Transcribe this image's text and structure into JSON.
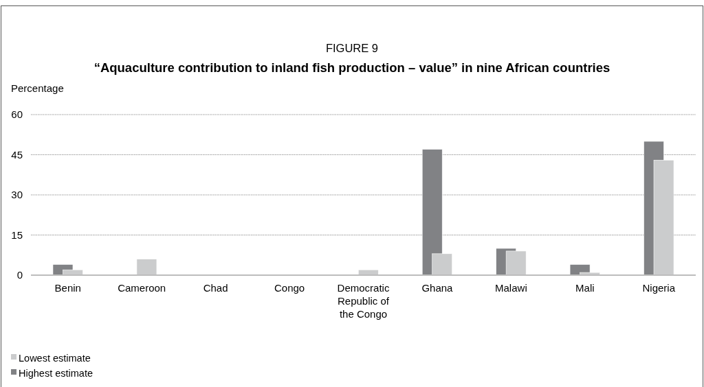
{
  "chart_data": {
    "type": "bar",
    "title": "FIGURE 9",
    "subtitle": "“Aquaculture contribution to inland fish production – value” in nine African countries",
    "ylabel": "Percentage",
    "categories": [
      "Benin",
      "Cameroon",
      "Chad",
      "Congo",
      "Democratic Republic of the Congo",
      "Ghana",
      "Malawi",
      "Mali",
      "Nigeria"
    ],
    "series": [
      {
        "name": "Lowest estimate",
        "color": "#cbcccd",
        "values": [
          2,
          6,
          0,
          0,
          2,
          8,
          9,
          1,
          43
        ]
      },
      {
        "name": "Highest estimate",
        "color": "#818285",
        "values": [
          4,
          0,
          0,
          0,
          0,
          47,
          10,
          4,
          50
        ]
      }
    ],
    "ylim": [
      0,
      60
    ],
    "yticks": [
      0,
      15,
      30,
      45,
      60
    ],
    "grid": "y",
    "legend": "bottom left"
  }
}
